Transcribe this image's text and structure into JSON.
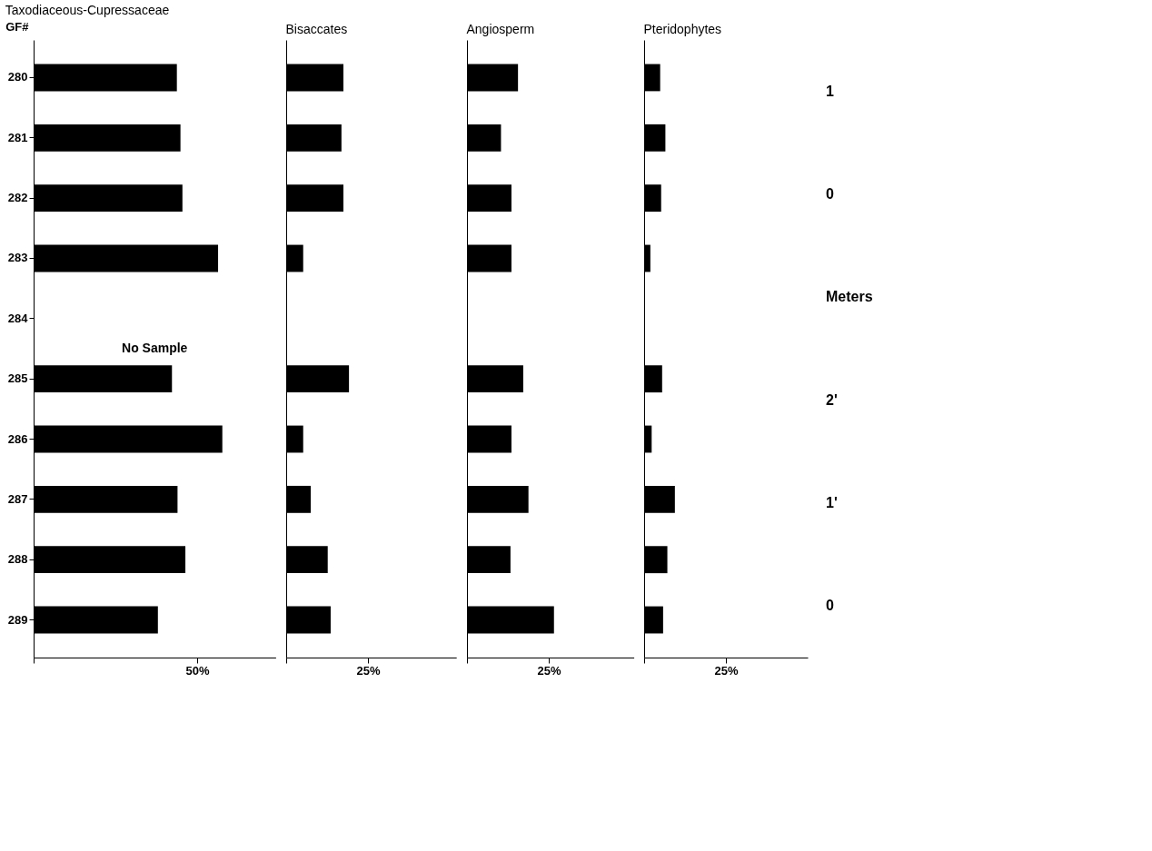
{
  "chart_data": [
    {
      "type": "bar",
      "orientation": "horizontal",
      "title": "Taxodiaceous-Cupressaceae",
      "ylabel": "GF#",
      "categories": [
        "280",
        "281",
        "282",
        "283",
        "284",
        "285",
        "286",
        "287",
        "288",
        "289"
      ],
      "series": [
        {
          "color": "#000000",
          "values": [
            43.8,
            44.9,
            45.5,
            56.4,
            null,
            42.3,
            57.7,
            44.0,
            46.4,
            38.0
          ]
        }
      ],
      "xlim": [
        0,
        74
      ],
      "xticks": [
        {
          "value": 0,
          "label": null
        },
        {
          "value": 50,
          "label": "50%"
        }
      ],
      "grid": false,
      "annotations": [
        "No Sample"
      ]
    },
    {
      "type": "bar",
      "orientation": "horizontal",
      "title": "Bisaccates",
      "categories": [
        "280",
        "281",
        "282",
        "283",
        "284",
        "285",
        "286",
        "287",
        "288",
        "289"
      ],
      "series": [
        {
          "color": "#000000",
          "values": [
            17.5,
            16.9,
            17.5,
            5.2,
            null,
            19.2,
            5.2,
            7.5,
            12.7,
            13.6
          ]
        }
      ],
      "xlim": [
        0,
        52
      ],
      "xticks": [
        {
          "value": 0,
          "label": null
        },
        {
          "value": 25,
          "label": "25%"
        }
      ],
      "grid": false,
      "tick_labels": "x"
    },
    {
      "type": "bar",
      "orientation": "horizontal",
      "title": "Angiosperm",
      "categories": [
        "280",
        "281",
        "282",
        "283",
        "284",
        "285",
        "286",
        "287",
        "288",
        "289"
      ],
      "series": [
        {
          "color": "#000000",
          "values": [
            15.6,
            10.4,
            13.6,
            13.6,
            null,
            17.2,
            13.6,
            18.8,
            13.3,
            26.6
          ]
        }
      ],
      "xlim": [
        0,
        51
      ],
      "xticks": [
        {
          "value": 0,
          "label": null
        },
        {
          "value": 25,
          "label": "25%"
        }
      ],
      "grid": false,
      "tick_labels": "x"
    },
    {
      "type": "bar",
      "orientation": "horizontal",
      "title": "Pteridophytes",
      "categories": [
        "280",
        "281",
        "282",
        "283",
        "284",
        "285",
        "286",
        "287",
        "288",
        "289"
      ],
      "series": [
        {
          "color": "#000000",
          "values": [
            4.9,
            6.5,
            5.2,
            1.9,
            null,
            5.5,
            2.3,
            9.4,
            7.1,
            5.8
          ]
        }
      ],
      "xlim": [
        0,
        50
      ],
      "xticks": [
        {
          "value": 0,
          "label": null
        },
        {
          "value": 25,
          "label": "25%"
        }
      ],
      "grid": false,
      "tick_labels": "x",
      "annotations": [
        "1",
        "0",
        "Meters",
        "2'",
        "1'",
        "0"
      ]
    }
  ]
}
